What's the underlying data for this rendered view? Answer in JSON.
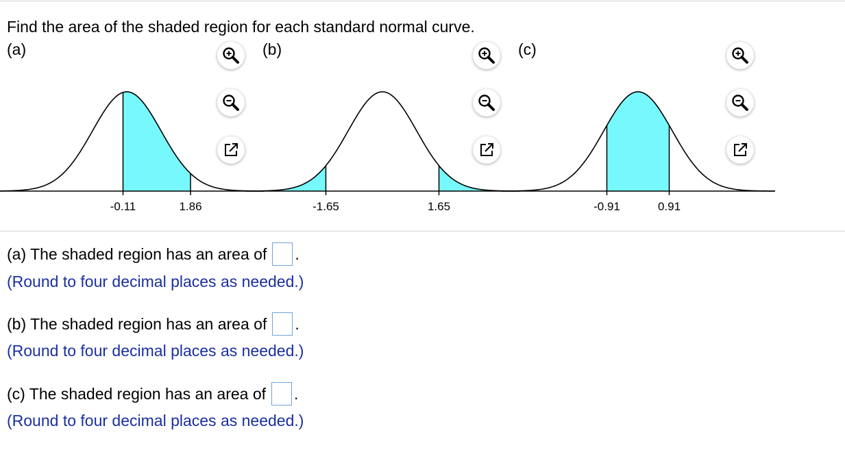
{
  "instruction": "Find the area of the shaded region for each standard normal curve.",
  "colors": {
    "shade": "#77f8fc",
    "hint": "#1a2fa0",
    "box_border": "#6fa4d4"
  },
  "tool_icons": [
    "zoom-in-icon",
    "zoom-out-icon",
    "pop-out-icon"
  ],
  "charts": [
    {
      "label": "(a)",
      "chart_data": {
        "type": "area",
        "distribution": "standard normal",
        "shaded_from": -0.11,
        "shaded_to": 1.86,
        "tick_labels": [
          "-0.11",
          "1.86"
        ]
      }
    },
    {
      "label": "(b)",
      "chart_data": {
        "type": "area",
        "distribution": "standard normal",
        "shaded_tails": [
          [
            -4,
            -1.65
          ],
          [
            1.65,
            4
          ]
        ],
        "tick_labels": [
          "-1.65",
          "1.65"
        ]
      }
    },
    {
      "label": "(c)",
      "chart_data": {
        "type": "area",
        "distribution": "standard normal",
        "shaded_from": -0.91,
        "shaded_to": 0.91,
        "tick_labels": [
          "-0.91",
          "0.91"
        ]
      }
    }
  ],
  "questions": [
    {
      "text": "(a) The shaded region has an area of",
      "value": "",
      "period": ".",
      "hint": "(Round to four decimal places as needed.)"
    },
    {
      "text": "(b) The shaded region has an area of",
      "value": "",
      "period": ".",
      "hint": "(Round to four decimal places as needed.)"
    },
    {
      "text": "(c) The shaded region has an area of",
      "value": "",
      "period": ".",
      "hint": "(Round to four decimal places as needed.)"
    }
  ]
}
